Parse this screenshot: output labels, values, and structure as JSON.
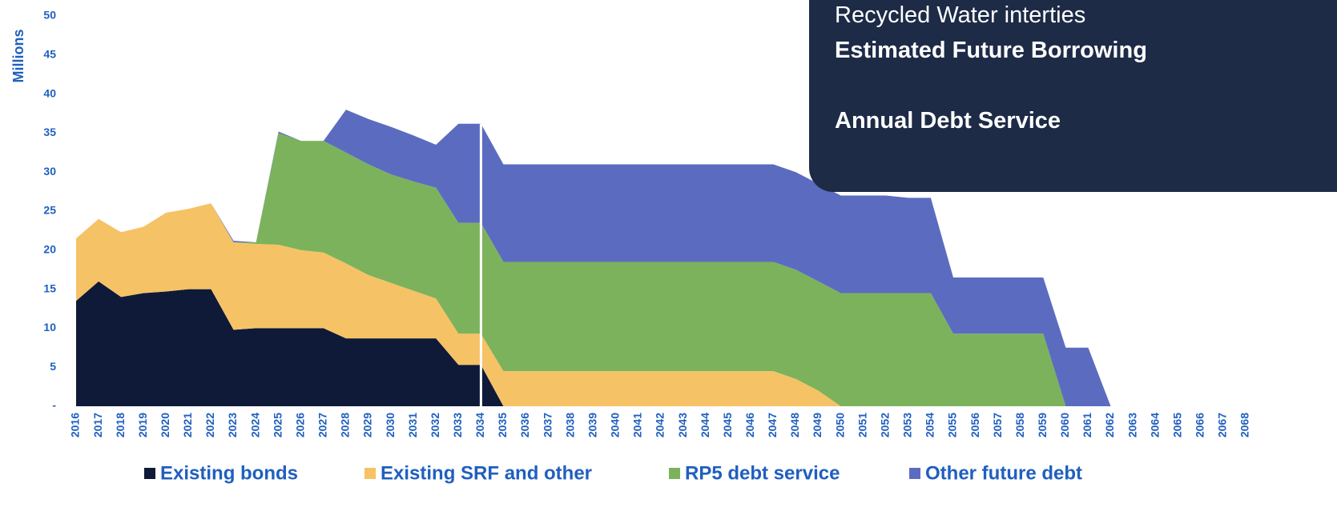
{
  "chart_data": {
    "type": "stacked-area",
    "panel": [
      "Recycled Water interties",
      "Estimated Future Borrowing",
      "Annual Debt Service"
    ],
    "ylabel": "Millions",
    "categories": [
      "2016",
      "2017",
      "2018",
      "2019",
      "2020",
      "2021",
      "2022",
      "2023",
      "2024",
      "2025",
      "2026",
      "2027",
      "2028",
      "2029",
      "2030",
      "2031",
      "2032",
      "2033",
      "2034",
      "2035",
      "2036",
      "2037",
      "2038",
      "2039",
      "2040",
      "2041",
      "2042",
      "2043",
      "2044",
      "2045",
      "2046",
      "2047",
      "2048",
      "2049",
      "2050",
      "2051",
      "2052",
      "2053",
      "2054",
      "2055",
      "2056",
      "2057",
      "2058",
      "2059",
      "2060",
      "2061",
      "2062",
      "2063",
      "2064",
      "2065",
      "2066",
      "2067",
      "2068"
    ],
    "series": [
      {
        "name": "Existing bonds",
        "color": "#0e1a38",
        "values": [
          13.5,
          16,
          14,
          14.5,
          14.7,
          15,
          15,
          9.8,
          10,
          10,
          10,
          10,
          8.7,
          8.7,
          8.7,
          8.7,
          8.7,
          5.3,
          5.3,
          0,
          0,
          0,
          0,
          0,
          0,
          0,
          0,
          0,
          0,
          0,
          0,
          0,
          0,
          0,
          0,
          0,
          0,
          0,
          0,
          0,
          0,
          0,
          0,
          0,
          0,
          0,
          0,
          0,
          0,
          0,
          0,
          0,
          0
        ]
      },
      {
        "name": "Existing SRF and other",
        "color": "#f6c266",
        "values": [
          8,
          8,
          8.3,
          8.5,
          10.1,
          10.3,
          11,
          11.2,
          10.8,
          10.7,
          10,
          9.7,
          9.6,
          8.1,
          7.1,
          6.1,
          5.1,
          4,
          4,
          4.5,
          4.5,
          4.5,
          4.5,
          4.5,
          4.5,
          4.5,
          4.5,
          4.5,
          4.5,
          4.5,
          4.5,
          4.5,
          3.5,
          2,
          0,
          0,
          0,
          0,
          0,
          0,
          0,
          0,
          0,
          0,
          0,
          0,
          0,
          0,
          0,
          0,
          0,
          0,
          0
        ]
      },
      {
        "name": "RP5 debt service",
        "color": "#7cb25c",
        "values": [
          0,
          0,
          0,
          0,
          0,
          0,
          0,
          0,
          0.2,
          14.3,
          14,
          14.3,
          14.2,
          14.2,
          13.9,
          14,
          14.2,
          14.2,
          14.2,
          14,
          14,
          14,
          14,
          14,
          14,
          14,
          14,
          14,
          14,
          14,
          14,
          14,
          14,
          14,
          14.5,
          14.5,
          14.5,
          14.5,
          14.5,
          9.3,
          9.3,
          9.3,
          9.3,
          9.3,
          0,
          0,
          0,
          0,
          0,
          0,
          0,
          0,
          0
        ]
      },
      {
        "name": "Other future debt",
        "color": "#5b6cc0",
        "values": [
          0,
          0,
          0,
          0,
          0,
          0,
          0,
          0.2,
          0,
          0.2,
          0,
          0,
          5.5,
          5.8,
          6.1,
          5.9,
          5.5,
          12.7,
          12.7,
          12.5,
          12.5,
          12.5,
          12.5,
          12.5,
          12.5,
          12.5,
          12.5,
          12.5,
          12.5,
          12.5,
          12.5,
          12.5,
          12.5,
          12.5,
          12.5,
          12.5,
          12.5,
          12.2,
          12.2,
          7.2,
          7.2,
          7.2,
          7.2,
          7.2,
          7.5,
          7.5,
          0,
          0,
          0,
          0,
          0,
          0,
          0
        ]
      }
    ],
    "ylim": [
      0,
      50
    ],
    "yticks": [
      {
        "value": 0,
        "label": "-"
      },
      5,
      10,
      15,
      20,
      25,
      30,
      35,
      40,
      45,
      50
    ]
  }
}
